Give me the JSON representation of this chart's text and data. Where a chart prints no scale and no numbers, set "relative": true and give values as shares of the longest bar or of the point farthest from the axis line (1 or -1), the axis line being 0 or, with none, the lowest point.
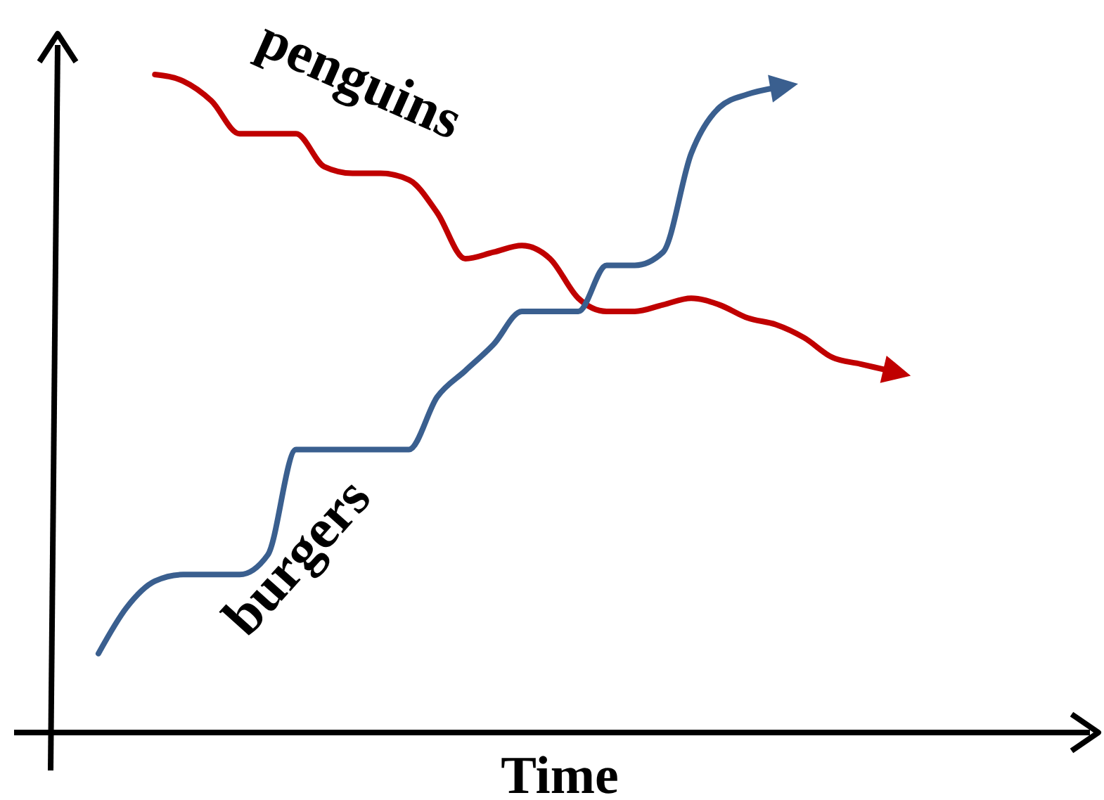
{
  "chart_data": {
    "type": "line",
    "relative": true,
    "xlabel": "Time",
    "categories": [
      null,
      null,
      null,
      null,
      null,
      null,
      null,
      null,
      null,
      null,
      null,
      null,
      null,
      null,
      null,
      null,
      null,
      null,
      null,
      null,
      null,
      null,
      null,
      null,
      null,
      null,
      null,
      null,
      null
    ],
    "series": [
      {
        "name": "penguins",
        "color": "#c00000",
        "values": [
          null,
          null,
          1.0,
          0.99,
          0.96,
          0.91,
          0.91,
          0.91,
          0.86,
          0.85,
          0.85,
          0.84,
          0.79,
          0.72,
          0.73,
          0.74,
          0.72,
          0.66,
          0.64,
          0.64,
          0.65,
          0.66,
          0.65,
          0.63,
          0.62,
          0.6,
          0.57,
          0.56,
          0.55
        ]
      },
      {
        "name": "burgers",
        "color": "#3a5f8f",
        "values": [
          0.12,
          0.19,
          0.23,
          0.24,
          0.24,
          0.24,
          0.27,
          0.43,
          0.43,
          0.43,
          0.43,
          0.43,
          0.51,
          0.55,
          0.59,
          0.64,
          0.64,
          0.64,
          0.71,
          0.71,
          0.73,
          0.88,
          0.95,
          0.97,
          0.98,
          null,
          null,
          null,
          null
        ]
      }
    ],
    "legend": false
  }
}
